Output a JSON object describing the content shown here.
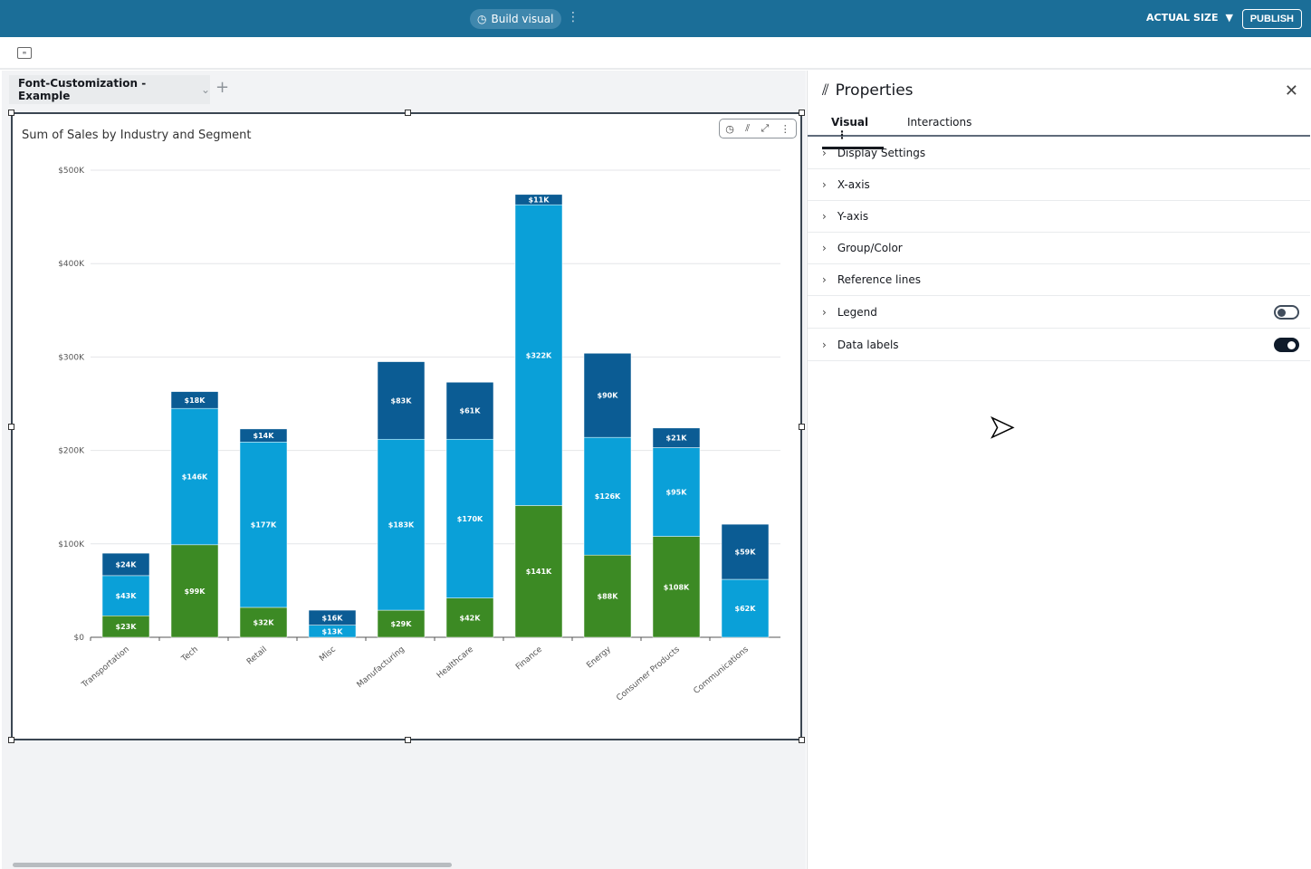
{
  "topbar": {
    "build_visual": "Build visual",
    "actual_size": "ACTUAL SIZE",
    "publish": "PUBLISH"
  },
  "sheet": {
    "tab_label": "Font-Customization - Example"
  },
  "visual": {
    "title": "Sum of Sales by Industry and Segment"
  },
  "properties": {
    "title": "Properties",
    "tabs": [
      {
        "label": "Visual"
      },
      {
        "label": "Interactions"
      }
    ],
    "sections": [
      {
        "label": "Display Settings"
      },
      {
        "label": "X-axis"
      },
      {
        "label": "Y-axis"
      },
      {
        "label": "Group/Color"
      },
      {
        "label": "Reference lines"
      },
      {
        "label": "Legend",
        "toggle": false
      },
      {
        "label": "Data labels",
        "toggle": true
      }
    ]
  },
  "chart_data": {
    "type": "bar",
    "stacked": true,
    "title": "Sum of Sales by Industry and Segment",
    "categories": [
      "Transportation",
      "Tech",
      "Retail",
      "Misc",
      "Manufacturing",
      "Healthcare",
      "Finance",
      "Energy",
      "Consumer Products",
      "Communications"
    ],
    "series": [
      {
        "color": "#3c8a24",
        "values": [
          23,
          99,
          32,
          0,
          29,
          42,
          141,
          88,
          108,
          0
        ]
      },
      {
        "color": "#0aa0d8",
        "values": [
          43,
          146,
          177,
          13,
          183,
          170,
          322,
          126,
          95,
          62
        ]
      },
      {
        "color": "#0b5c94",
        "values": [
          24,
          18,
          14,
          16,
          83,
          61,
          11,
          90,
          21,
          59
        ]
      }
    ],
    "units": "K USD",
    "yticks": [
      "$0",
      "$100K",
      "$200K",
      "$300K",
      "$400K",
      "$500K"
    ],
    "ylim": [
      0,
      500
    ],
    "grid": true,
    "legend": "hidden",
    "data_labels": true
  }
}
